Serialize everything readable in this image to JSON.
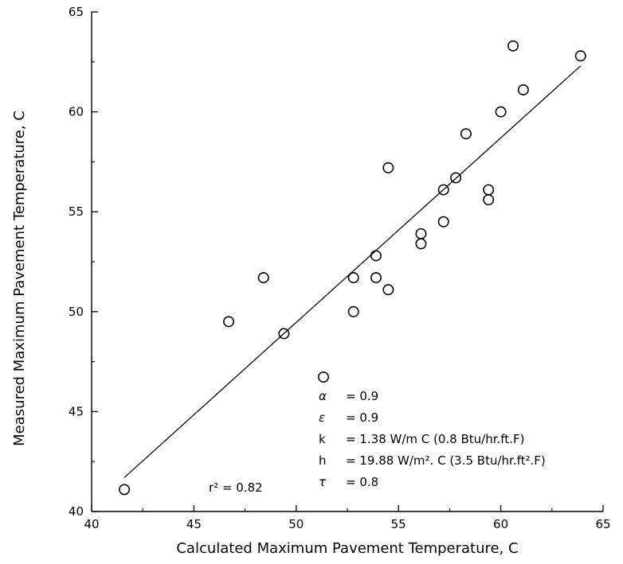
{
  "chart_data": {
    "type": "scatter",
    "title": "",
    "xlabel": "Calculated Maximum Pavement Temperature,  C",
    "ylabel": "Measured Maximum Pavement Temperature,  C",
    "xlim": [
      40,
      65
    ],
    "ylim": [
      40,
      65
    ],
    "xticks": [
      40,
      45,
      50,
      55,
      60,
      65
    ],
    "yticks": [
      40,
      45,
      50,
      55,
      60,
      65
    ],
    "grid": false,
    "points": [
      {
        "x": 41.6,
        "y": 41.1
      },
      {
        "x": 46.7,
        "y": 49.5
      },
      {
        "x": 48.4,
        "y": 51.7
      },
      {
        "x": 49.4,
        "y": 48.9
      },
      {
        "x": 52.8,
        "y": 51.7
      },
      {
        "x": 52.8,
        "y": 50.0
      },
      {
        "x": 53.9,
        "y": 52.8
      },
      {
        "x": 53.9,
        "y": 51.7
      },
      {
        "x": 54.5,
        "y": 51.1
      },
      {
        "x": 54.5,
        "y": 57.2
      },
      {
        "x": 56.1,
        "y": 53.9
      },
      {
        "x": 56.1,
        "y": 53.4
      },
      {
        "x": 57.2,
        "y": 56.1
      },
      {
        "x": 57.2,
        "y": 54.5
      },
      {
        "x": 57.8,
        "y": 56.7
      },
      {
        "x": 58.3,
        "y": 58.9
      },
      {
        "x": 59.4,
        "y": 56.1
      },
      {
        "x": 59.4,
        "y": 55.6
      },
      {
        "x": 60.0,
        "y": 60.0
      },
      {
        "x": 60.6,
        "y": 63.3
      },
      {
        "x": 61.1,
        "y": 61.1
      },
      {
        "x": 63.9,
        "y": 62.8
      }
    ],
    "fit_line": {
      "x": [
        41.6,
        63.9
      ],
      "y": [
        41.7,
        62.3
      ]
    },
    "legend": [
      {
        "symbol": "α",
        "value": "= 0.9"
      },
      {
        "symbol": "ε",
        "value": "= 0.9"
      },
      {
        "symbol": "k",
        "value": "= 1.38  W/m C (0.8 Btu/hr.ft.F)"
      },
      {
        "symbol": "h",
        "value": "= 19.88  W/m². C (3.5 Btu/hr.ft².F)"
      },
      {
        "symbol": "τ",
        "value": "= 0.8"
      }
    ],
    "legend_placement": "bottom-right",
    "annotation": "r² = 0.82"
  }
}
